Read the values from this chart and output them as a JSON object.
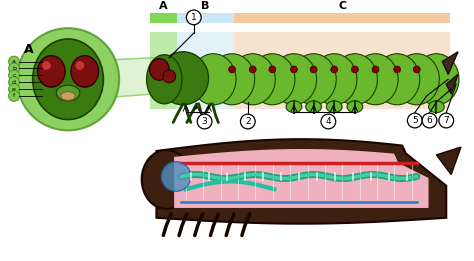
{
  "bg_color": "#ffffff",
  "section_A_color": "#7ed957",
  "section_B_color": "#c8e6f5",
  "section_C_color": "#f5c8a0",
  "caterpillar_light_green": "#6ab82e",
  "caterpillar_dark_green": "#3a7a10",
  "edge_color": "#1a4000",
  "eye_color": "#7B1010",
  "dark_brown": "#3d2010",
  "zoom_green": "#80cc50",
  "label_letters": [
    "A",
    "B",
    "C"
  ],
  "label_numbers": [
    "1",
    "2",
    "3",
    "4",
    "5",
    "6",
    "7"
  ],
  "label_subletters": [
    "a",
    "b",
    "c",
    "d",
    "e",
    "f"
  ]
}
